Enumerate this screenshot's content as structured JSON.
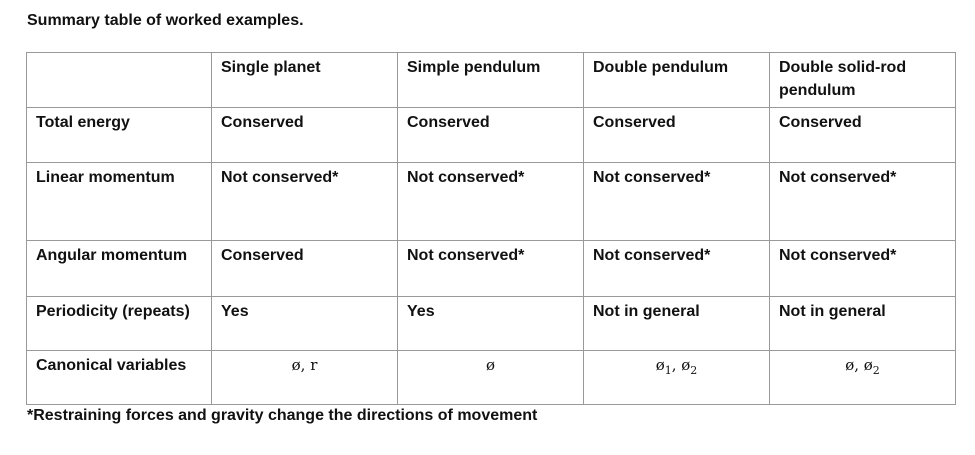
{
  "caption": "Summary table of worked examples.",
  "columns": [
    "",
    "Single planet",
    "Simple pendulum",
    "Double pendulum",
    "Double solid-rod pendulum"
  ],
  "rows": [
    {
      "label": "Total energy",
      "cells": [
        "Conserved",
        "Conserved",
        "Conserved",
        "Conserved"
      ]
    },
    {
      "label": "Linear momentum",
      "cells": [
        "Not conserved*",
        "Not conserved*",
        "Not conserved*",
        "Not conserved*"
      ]
    },
    {
      "label": "Angular momentum",
      "cells": [
        "Conserved",
        "Not conserved*",
        "Not conserved*",
        "Not conserved*"
      ]
    },
    {
      "label": "Periodicity (repeats)",
      "cells": [
        "Yes",
        "Yes",
        "Not in general",
        "Not in general"
      ]
    }
  ],
  "canonical": {
    "label": "Canonical variables",
    "cells": [
      {
        "main": "ø, r",
        "sub": ""
      },
      {
        "main": "ø",
        "sub": ""
      },
      {
        "main": "ø",
        "sub": "1",
        "main2": ", ø",
        "sub2": "2"
      },
      {
        "main": "ø, ø",
        "sub": "2"
      }
    ]
  },
  "footnote": "*Restraining forces and gravity change the directions of movement"
}
